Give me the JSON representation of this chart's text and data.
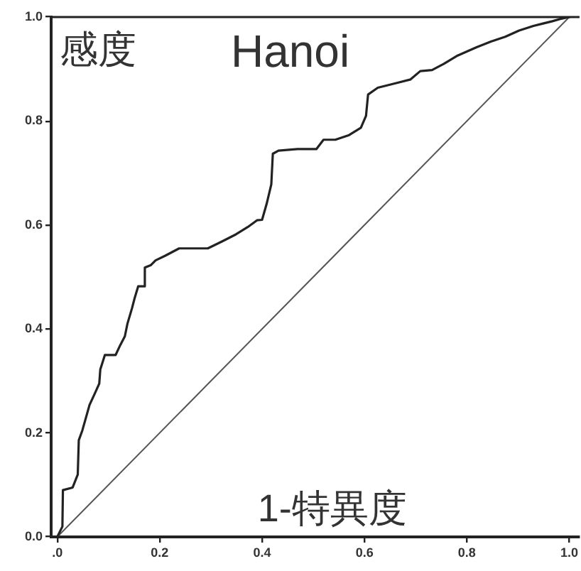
{
  "chart_data": {
    "type": "line",
    "title": "Hanoi",
    "xlabel": "1-特異度",
    "ylabel": "感度",
    "series": [
      {
        "x": [
          0,
          0.01,
          0.011,
          0.03,
          0.04,
          0.042,
          0.049,
          0.059,
          0.063,
          0.072,
          0.082,
          0.084,
          0.093,
          0.114,
          0.123,
          0.132,
          0.137,
          0.146,
          0.151,
          0.158,
          0.169,
          0.171,
          0.183,
          0.192,
          0.211,
          0.238,
          0.294,
          0.321,
          0.349,
          0.372,
          0.39,
          0.4,
          0.409,
          0.418,
          0.421,
          0.432,
          0.469,
          0.506,
          0.52,
          0.543,
          0.57,
          0.593,
          0.603,
          0.607,
          0.626,
          0.662,
          0.69,
          0.709,
          0.732,
          0.755,
          0.782,
          0.819,
          0.847,
          0.875,
          0.902,
          0.93,
          0.967,
          0.981,
          1.0
        ],
        "values": [
          0,
          0.02,
          0.09,
          0.095,
          0.12,
          0.186,
          0.205,
          0.24,
          0.254,
          0.273,
          0.295,
          0.322,
          0.35,
          0.35,
          0.369,
          0.386,
          0.41,
          0.44,
          0.459,
          0.482,
          0.482,
          0.518,
          0.523,
          0.532,
          0.541,
          0.555,
          0.555,
          0.568,
          0.582,
          0.596,
          0.609,
          0.61,
          0.641,
          0.678,
          0.737,
          0.743,
          0.746,
          0.746,
          0.764,
          0.764,
          0.773,
          0.787,
          0.81,
          0.851,
          0.864,
          0.873,
          0.88,
          0.896,
          0.898,
          0.91,
          0.926,
          0.942,
          0.953,
          0.962,
          0.974,
          0.983,
          0.992,
          0.996,
          1.0
        ],
        "color": "#222222"
      },
      {
        "x": [
          0,
          1
        ],
        "values": [
          0,
          1
        ],
        "color": "#555555"
      }
    ],
    "xlim": [
      -0.012,
      1.02
    ],
    "ylim": [
      0,
      1
    ],
    "xticks": [
      {
        "value": 0,
        "label": ".0"
      },
      0.2,
      0.4,
      0.6,
      0.8,
      {
        "value": 1,
        "label": "1.0"
      }
    ],
    "yticks": [
      {
        "value": 0,
        "label": "0.0"
      },
      0.2,
      0.4,
      0.6,
      0.8,
      {
        "value": 1,
        "label": "1.0"
      }
    ],
    "grid": false,
    "legend": false,
    "marker": "none",
    "line_style": "solid"
  }
}
